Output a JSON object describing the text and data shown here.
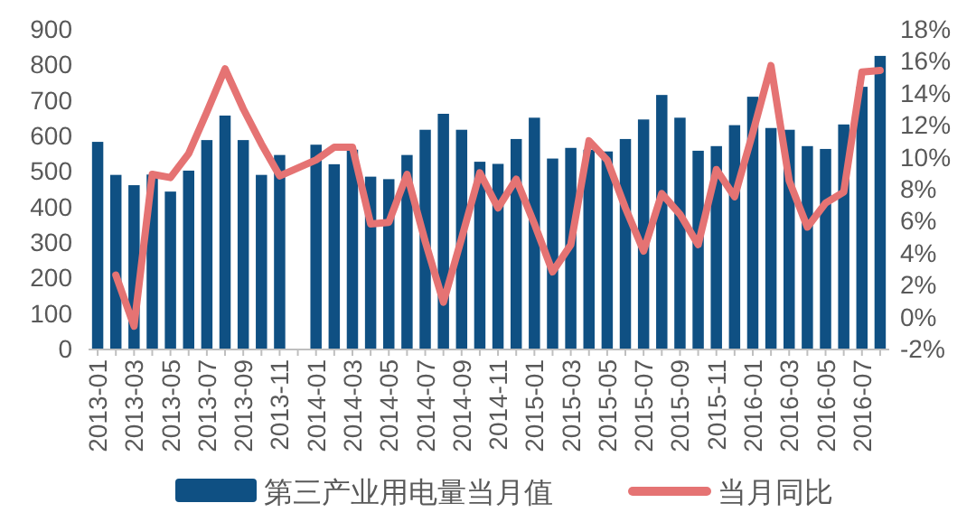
{
  "chart_data": {
    "type": "bar",
    "categories": [
      "2013-01",
      null,
      "2013-03",
      null,
      "2013-05",
      null,
      "2013-07",
      null,
      "2013-09",
      null,
      "2013-11",
      null,
      "2014-01",
      null,
      "2014-03",
      null,
      "2014-05",
      null,
      "2014-07",
      null,
      "2014-09",
      null,
      "2014-11",
      null,
      "2015-01",
      null,
      "2015-03",
      null,
      "2015-05",
      null,
      "2015-07",
      null,
      "2015-09",
      null,
      "2015-11",
      null,
      "2016-01",
      null,
      "2016-03",
      null,
      "2016-05",
      null,
      "2016-07",
      null
    ],
    "series": [
      {
        "name": "第三产业用电量当月值",
        "color": "#0f5083",
        "values": [
          582,
          489,
          460,
          490,
          442,
          501,
          587,
          656,
          587,
          489,
          545,
          null,
          574,
          519,
          560,
          484,
          477,
          545,
          616,
          661,
          616,
          526,
          520,
          590,
          650,
          535,
          565,
          560,
          555,
          590,
          645,
          714,
          650,
          557,
          570,
          629,
          709,
          621,
          616,
          570,
          562,
          631,
          737,
          824
        ]
      },
      {
        "name": "当月同比",
        "type": "line",
        "axis": "y2",
        "color": "#e57373",
        "values": [
          null,
          2.6,
          -0.6,
          8.9,
          8.7,
          10.2,
          12.8,
          15.5,
          13.0,
          10.8,
          8.8,
          null,
          9.8,
          10.6,
          10.6,
          5.8,
          5.9,
          8.9,
          4.7,
          0.9,
          4.9,
          9.0,
          6.8,
          8.6,
          5.8,
          2.8,
          4.5,
          11.0,
          9.8,
          6.8,
          4.1,
          7.7,
          6.4,
          4.5,
          9.2,
          7.5,
          11.5,
          15.7,
          8.5,
          5.6,
          7.1,
          7.8,
          15.3,
          15.4
        ]
      }
    ],
    "ylim": [
      0,
      900
    ],
    "yticks": [
      0,
      100,
      200,
      300,
      400,
      500,
      600,
      700,
      800,
      900
    ],
    "y2lim": [
      -2,
      18
    ],
    "y2ticks": [
      {
        "value": -2,
        "label": "-2%"
      },
      {
        "value": 0,
        "label": "0%"
      },
      {
        "value": 2,
        "label": "2%"
      },
      {
        "value": 4,
        "label": "4%"
      },
      {
        "value": 6,
        "label": "6%"
      },
      {
        "value": 8,
        "label": "8%"
      },
      {
        "value": 10,
        "label": "10%"
      },
      {
        "value": 12,
        "label": "12%"
      },
      {
        "value": 14,
        "label": "14%"
      },
      {
        "value": 16,
        "label": "16%"
      },
      {
        "value": 18,
        "label": "18%"
      }
    ],
    "legend": "bottom"
  }
}
